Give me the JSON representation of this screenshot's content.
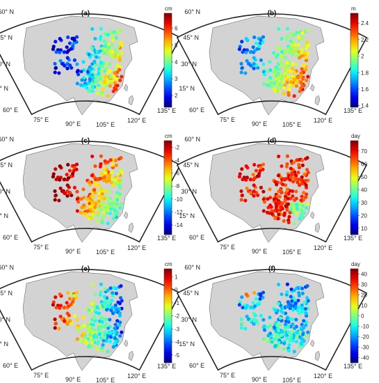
{
  "colors": {
    "land": "#d3d3d3",
    "sea": "#ffffff",
    "frame": "#222222",
    "coast": "#555555"
  },
  "panels": [
    {
      "id": "a",
      "title": "(a)",
      "unit": "cm",
      "ticks": [
        "6",
        "5",
        "4",
        "3",
        "2"
      ],
      "tick_values": [
        6,
        5,
        4,
        3,
        2
      ],
      "vmin": 1.3,
      "vmax": 6.9,
      "pattern": "amp"
    },
    {
      "id": "b",
      "title": "(b)",
      "unit": "m",
      "ticks": [
        "2.4",
        "2.2",
        "2",
        "1.8",
        "1.6",
        "1.4"
      ],
      "tick_values": [
        2.4,
        2.2,
        2.0,
        1.8,
        1.6,
        1.4
      ],
      "vmin": 1.38,
      "vmax": 2.52,
      "pattern": "mean"
    },
    {
      "id": "c",
      "title": "(c)",
      "unit": "cm",
      "ticks": [
        "-2",
        "-4",
        "-6",
        "-8",
        "-10",
        "-12",
        "-14"
      ],
      "tick_values": [
        -2,
        -4,
        -6,
        -8,
        -10,
        -12,
        -14
      ],
      "vmin": -15.5,
      "vmax": -1.0,
      "pattern": "trendneg"
    },
    {
      "id": "d",
      "title": "(d)",
      "unit": "day",
      "ticks": [
        "70",
        "60",
        "50",
        "40",
        "30",
        "20",
        "10"
      ],
      "tick_values": [
        70,
        60,
        50,
        40,
        30,
        20,
        10
      ],
      "vmin": 5,
      "vmax": 78,
      "pattern": "dayhigh"
    },
    {
      "id": "e",
      "title": "(e)",
      "unit": "cm",
      "ticks": [
        "1",
        "0",
        "-1",
        "-2",
        "-3",
        "-4",
        "-5"
      ],
      "tick_values": [
        1,
        0,
        -1,
        -2,
        -3,
        -4,
        -5
      ],
      "vmin": -5.6,
      "vmax": 1.6,
      "pattern": "westhigh"
    },
    {
      "id": "f",
      "title": "(f)",
      "unit": "day",
      "ticks": [
        "40",
        "30",
        "20",
        "10",
        "0",
        "-10",
        "-20",
        "-30",
        "-40"
      ],
      "tick_values": [
        40,
        30,
        20,
        10,
        0,
        -10,
        -20,
        -30,
        -40
      ],
      "vmin": -45,
      "vmax": 45,
      "pattern": "daymixed"
    }
  ],
  "lat_labels": [
    "60° N",
    "45° N",
    "30° N",
    "15° N"
  ],
  "lon_labels": [
    "60° E",
    "75° E",
    "90° E",
    "105° E",
    "120° E",
    "135° E"
  ]
}
